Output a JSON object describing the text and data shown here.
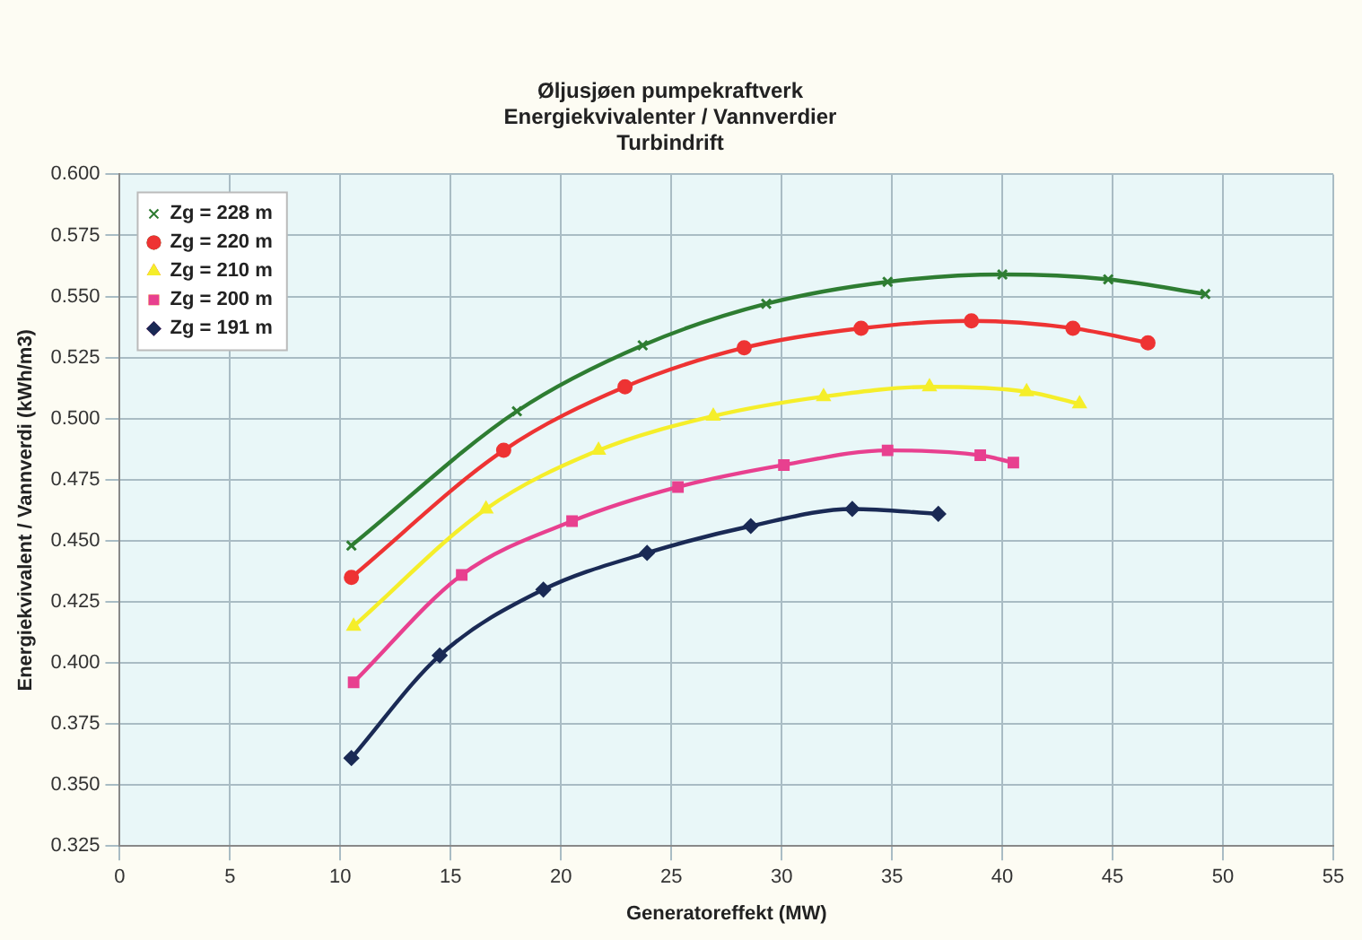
{
  "chart_data": {
    "type": "line",
    "title": "Øljusjøen pumpekraftverk",
    "subtitle": "Energiekvivalenter / Vannverdier\nTurbindrift",
    "xlabel": "Generatoreffekt (MW)",
    "ylabel": "Energiekvivalent / Vannverdi (kWh/m3)",
    "xlim": [
      0,
      55
    ],
    "xticks": [
      0,
      5,
      10,
      15,
      20,
      25,
      30,
      35,
      40,
      45,
      50,
      55
    ],
    "ylim": [
      0.325,
      0.6
    ],
    "yticks": [
      {
        "value": 0.325,
        "label": "0.325"
      },
      {
        "value": 0.35,
        "label": "0.350"
      },
      {
        "value": 0.375,
        "label": "0.375"
      },
      {
        "value": 0.4,
        "label": "0.400"
      },
      {
        "value": 0.425,
        "label": "0.425"
      },
      {
        "value": 0.45,
        "label": "0.450"
      },
      {
        "value": 0.475,
        "label": "0.475"
      },
      {
        "value": 0.5,
        "label": "0.500"
      },
      {
        "value": 0.525,
        "label": "0.525"
      },
      {
        "value": 0.55,
        "label": "0.550"
      },
      {
        "value": 0.575,
        "label": "0.575"
      },
      {
        "value": 0.6,
        "label": "0.600"
      }
    ],
    "grid": true,
    "legend": "top left",
    "series": [
      {
        "name": "Zg = 228 m",
        "color": "#2e7d32",
        "marker": "cross",
        "x": [
          10.5,
          18.0,
          23.7,
          29.3,
          34.8,
          40.0,
          44.8,
          49.2
        ],
        "values": [
          0.448,
          0.503,
          0.53,
          0.547,
          0.556,
          0.559,
          0.557,
          0.551
        ]
      },
      {
        "name": "Zg = 220 m",
        "color": "#ee3333",
        "marker": "circle",
        "x": [
          10.5,
          17.4,
          22.9,
          28.3,
          33.6,
          38.6,
          43.2,
          46.6
        ],
        "values": [
          0.435,
          0.487,
          0.513,
          0.529,
          0.537,
          0.54,
          0.537,
          0.531
        ]
      },
      {
        "name": "Zg = 210 m",
        "color": "#f5ee2a",
        "marker": "triangle",
        "x": [
          10.6,
          16.6,
          21.7,
          26.9,
          31.9,
          36.7,
          41.1,
          43.5
        ],
        "values": [
          0.415,
          0.463,
          0.487,
          0.501,
          0.509,
          0.513,
          0.511,
          0.506
        ]
      },
      {
        "name": "Zg = 200 m",
        "color": "#e8408f",
        "marker": "square",
        "x": [
          10.6,
          15.5,
          20.5,
          25.3,
          30.1,
          34.8,
          39.0,
          40.5
        ],
        "values": [
          0.392,
          0.436,
          0.458,
          0.472,
          0.481,
          0.487,
          0.485,
          0.482
        ]
      },
      {
        "name": "Zg = 191 m",
        "color": "#1a2a55",
        "marker": "diamond",
        "x": [
          10.5,
          14.5,
          19.2,
          23.9,
          28.6,
          33.2,
          37.1
        ],
        "values": [
          0.361,
          0.403,
          0.43,
          0.445,
          0.456,
          0.463,
          0.461
        ]
      }
    ]
  }
}
